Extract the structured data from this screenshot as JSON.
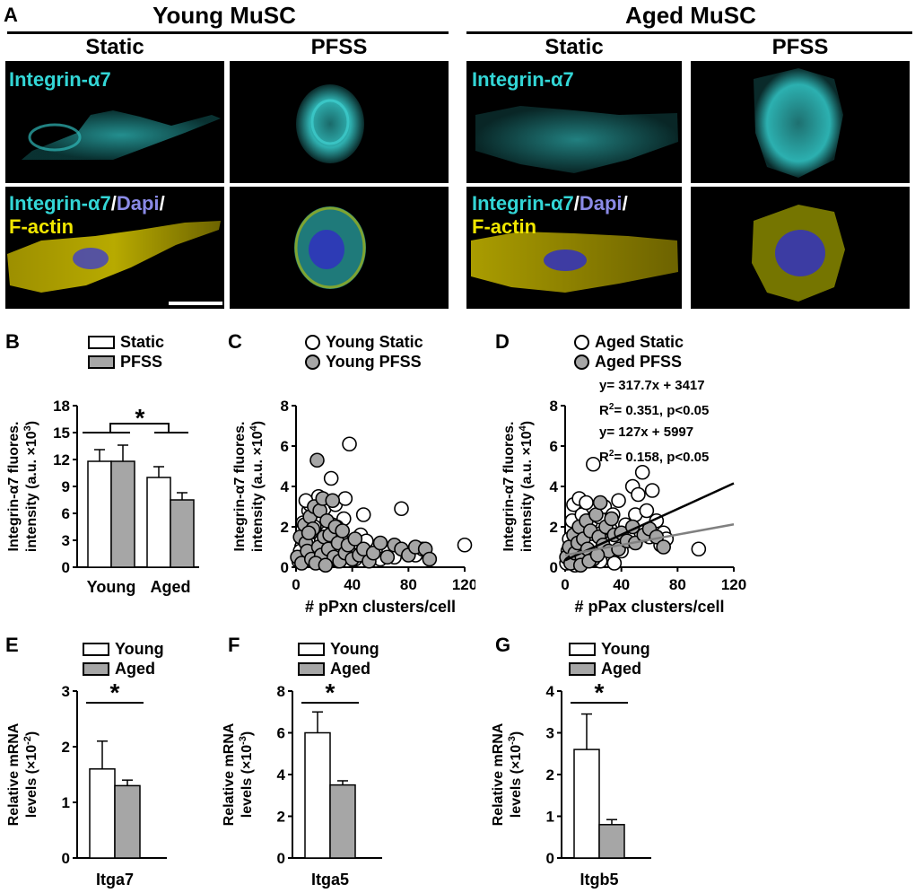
{
  "panels": {
    "A": "A",
    "B": "B",
    "C": "C",
    "D": "D",
    "E": "E",
    "F": "F",
    "G": "G"
  },
  "panel_a": {
    "young_header": "Young MuSC",
    "aged_header": "Aged MuSC",
    "col_static": "Static",
    "col_pfss": "PFSS",
    "label_integrin": "Integrin-α7",
    "merge_integrin": "Integrin-α7",
    "merge_slash1": "/",
    "merge_dapi": "Dapi",
    "merge_slash2": "/",
    "merge_factin": "F-actin",
    "colors": {
      "integrin": "#33d6d6",
      "dapi": "#8a8ae6",
      "factin": "#f0e600",
      "bg": "#000000"
    }
  },
  "legend_b": {
    "static": "Static",
    "pfss": "PFSS"
  },
  "legend_c": {
    "static": "Young Static",
    "pfss": "Young PFSS"
  },
  "legend_d": {
    "static": "Aged Static",
    "pfss": "Aged PFSS"
  },
  "legend_efg": {
    "young": "Young",
    "aged": "Aged"
  },
  "regression_d": {
    "line1": "y= 317.7x + 3417",
    "line2_pre": "R",
    "line2_sup": "2",
    "line2_post": "= 0.351, p<0.05",
    "line3": "y= 127x + 5997",
    "line4_pre": "R",
    "line4_sup": "2",
    "line4_post": "= 0.158, p<0.05"
  },
  "ylabels": {
    "b": {
      "l1": "Integrin-α7 fluores.",
      "l2_pre": "intensity (a.u. ×10",
      "l2_sup": "3",
      "l2_post": ")"
    },
    "c": {
      "l1": "Integrin-α7 fluores.",
      "l2_pre": "intensity (a.u. ×10",
      "l2_sup": "4",
      "l2_post": ")"
    },
    "d": {
      "l1": "Integrin-α7 fluores.",
      "l2_pre": "intensity (a.u. ×10",
      "l2_sup": "4",
      "l2_post": ")"
    },
    "e": {
      "l1": "Relative mRNA",
      "l2_pre": "levels (×10",
      "l2_sup": "-2",
      "l2_post": ")"
    },
    "f": {
      "l1": "Relative mRNA",
      "l2_pre": "levels (×10",
      "l2_sup": "-3",
      "l2_post": ")"
    },
    "g": {
      "l1": "Relative mRNA",
      "l2_pre": "levels (×10",
      "l2_sup": "-3",
      "l2_post": ")"
    }
  },
  "chart_data": [
    {
      "id": "B",
      "type": "bar",
      "categories": [
        "Young",
        "Aged"
      ],
      "series": [
        {
          "name": "Static",
          "values": [
            11.8,
            10.0
          ],
          "errors": [
            1.3,
            1.2
          ]
        },
        {
          "name": "PFSS",
          "values": [
            11.8,
            7.5
          ],
          "errors": [
            1.8,
            0.8
          ]
        }
      ],
      "ylim": [
        0,
        18
      ],
      "yticks": [
        0,
        3,
        6,
        9,
        12,
        15,
        18
      ],
      "significance": "*",
      "colors": {
        "Static": "#ffffff",
        "PFSS": "#a6a6a6"
      }
    },
    {
      "id": "C",
      "type": "scatter",
      "xlabel": "# pPxn clusters/cell",
      "xlim": [
        0,
        120
      ],
      "xticks": [
        0,
        40,
        80,
        120
      ],
      "ylim": [
        0,
        8
      ],
      "yticks": [
        0,
        2,
        4,
        6,
        8
      ],
      "series": [
        {
          "name": "Young Static",
          "points": [
            [
              2,
              0.3
            ],
            [
              4,
              1.0
            ],
            [
              5,
              2.2
            ],
            [
              6,
              1.5
            ],
            [
              8,
              0.5
            ],
            [
              9,
              2.8
            ],
            [
              10,
              3.1
            ],
            [
              11,
              1.1
            ],
            [
              12,
              1.8
            ],
            [
              14,
              0.4
            ],
            [
              15,
              2.5
            ],
            [
              16,
              3.5
            ],
            [
              18,
              1.3
            ],
            [
              20,
              2.9
            ],
            [
              21,
              0.8
            ],
            [
              22,
              1.7
            ],
            [
              25,
              4.4
            ],
            [
              26,
              2.1
            ],
            [
              28,
              3.1
            ],
            [
              30,
              0.3
            ],
            [
              32,
              1.4
            ],
            [
              34,
              2.4
            ],
            [
              36,
              0.9
            ],
            [
              38,
              6.1
            ],
            [
              40,
              1.1
            ],
            [
              43,
              0.6
            ],
            [
              46,
              1.6
            ],
            [
              48,
              2.6
            ],
            [
              52,
              0.5
            ],
            [
              55,
              1.0
            ],
            [
              60,
              0.4
            ],
            [
              66,
              0.8
            ],
            [
              70,
              0.5
            ],
            [
              75,
              2.9
            ],
            [
              85,
              0.6
            ],
            [
              90,
              0.9
            ],
            [
              120,
              1.1
            ],
            [
              3,
              0.8
            ],
            [
              7,
              3.3
            ],
            [
              13,
              2.0
            ],
            [
              19,
              0.2
            ],
            [
              24,
              1.0
            ],
            [
              29,
              2.0
            ],
            [
              35,
              3.4
            ],
            [
              42,
              0.4
            ],
            [
              50,
              1.3
            ]
          ]
        },
        {
          "name": "Young PFSS",
          "points": [
            [
              1,
              0.5
            ],
            [
              3,
              1.5
            ],
            [
              4,
              0.2
            ],
            [
              6,
              2.1
            ],
            [
              7,
              1.2
            ],
            [
              8,
              0.8
            ],
            [
              10,
              2.5
            ],
            [
              11,
              0.4
            ],
            [
              12,
              1.9
            ],
            [
              13,
              3.0
            ],
            [
              15,
              5.3
            ],
            [
              16,
              1.0
            ],
            [
              17,
              2.8
            ],
            [
              18,
              0.6
            ],
            [
              19,
              3.4
            ],
            [
              20,
              1.5
            ],
            [
              22,
              2.3
            ],
            [
              23,
              0.9
            ],
            [
              24,
              1.6
            ],
            [
              26,
              3.3
            ],
            [
              27,
              0.5
            ],
            [
              28,
              2.0
            ],
            [
              30,
              1.2
            ],
            [
              31,
              0.3
            ],
            [
              33,
              1.8
            ],
            [
              35,
              0.7
            ],
            [
              37,
              1.1
            ],
            [
              40,
              0.4
            ],
            [
              42,
              1.4
            ],
            [
              45,
              0.6
            ],
            [
              48,
              0.9
            ],
            [
              52,
              0.3
            ],
            [
              55,
              0.7
            ],
            [
              60,
              1.2
            ],
            [
              65,
              0.5
            ],
            [
              70,
              1.1
            ],
            [
              75,
              0.9
            ],
            [
              80,
              0.6
            ],
            [
              85,
              1.0
            ],
            [
              92,
              0.9
            ],
            [
              95,
              0.4
            ],
            [
              9,
              1.7
            ],
            [
              14,
              0.2
            ],
            [
              21,
              0.1
            ]
          ]
        }
      ]
    },
    {
      "id": "D",
      "type": "scatter",
      "xlabel": "# pPax clusters/cell",
      "xlim": [
        0,
        120
      ],
      "xticks": [
        0,
        40,
        80,
        120
      ],
      "ylim": [
        0,
        8
      ],
      "yticks": [
        0,
        2,
        4,
        6,
        8
      ],
      "series": [
        {
          "name": "Aged Static",
          "points": [
            [
              1,
              0.2
            ],
            [
              2,
              0.8
            ],
            [
              3,
              1.4
            ],
            [
              4,
              0.4
            ],
            [
              5,
              2.3
            ],
            [
              6,
              3.1
            ],
            [
              8,
              0.7
            ],
            [
              9,
              1.8
            ],
            [
              10,
              3.4
            ],
            [
              11,
              0.3
            ],
            [
              12,
              2.6
            ],
            [
              14,
              1.1
            ],
            [
              15,
              3.2
            ],
            [
              16,
              0.5
            ],
            [
              18,
              2.2
            ],
            [
              20,
              5.1
            ],
            [
              21,
              1.3
            ],
            [
              22,
              0.9
            ],
            [
              24,
              2.5
            ],
            [
              26,
              1.7
            ],
            [
              28,
              3.0
            ],
            [
              30,
              0.6
            ],
            [
              32,
              1.9
            ],
            [
              34,
              2.6
            ],
            [
              36,
              1.2
            ],
            [
              38,
              3.3
            ],
            [
              40,
              0.8
            ],
            [
              43,
              2.1
            ],
            [
              45,
              1.5
            ],
            [
              48,
              4.0
            ],
            [
              50,
              2.6
            ],
            [
              52,
              3.6
            ],
            [
              55,
              4.7
            ],
            [
              58,
              2.8
            ],
            [
              60,
              1.5
            ],
            [
              62,
              3.8
            ],
            [
              65,
              2.3
            ],
            [
              68,
              1.1
            ],
            [
              70,
              1.7
            ],
            [
              72,
              1.4
            ],
            [
              95,
              0.9
            ],
            [
              7,
              0.1
            ],
            [
              13,
              0.5
            ],
            [
              19,
              1.0
            ],
            [
              25,
              0.3
            ],
            [
              35,
              0.2
            ]
          ]
        },
        {
          "name": "Aged PFSS",
          "points": [
            [
              1,
              0.5
            ],
            [
              3,
              1.0
            ],
            [
              4,
              0.2
            ],
            [
              6,
              1.6
            ],
            [
              7,
              0.7
            ],
            [
              9,
              1.2
            ],
            [
              10,
              2.0
            ],
            [
              12,
              0.5
            ],
            [
              13,
              1.4
            ],
            [
              15,
              2.3
            ],
            [
              16,
              0.9
            ],
            [
              18,
              1.8
            ],
            [
              20,
              0.4
            ],
            [
              22,
              2.6
            ],
            [
              24,
              1.5
            ],
            [
              25,
              3.2
            ],
            [
              27,
              1.1
            ],
            [
              29,
              2.0
            ],
            [
              31,
              0.8
            ],
            [
              33,
              2.4
            ],
            [
              35,
              1.6
            ],
            [
              38,
              0.9
            ],
            [
              40,
              1.7
            ],
            [
              44,
              1.3
            ],
            [
              48,
              2.0
            ],
            [
              50,
              1.2
            ],
            [
              56,
              1.6
            ],
            [
              60,
              1.9
            ],
            [
              65,
              1.5
            ],
            [
              70,
              1.0
            ],
            [
              11,
              0.1
            ],
            [
              17,
              0.3
            ],
            [
              23,
              0.6
            ]
          ]
        }
      ],
      "fits": [
        {
          "series": "Aged Static",
          "slope": 0.03177,
          "intercept": 0.3417,
          "color": "#000000"
        },
        {
          "series": "Aged PFSS",
          "slope": 0.0127,
          "intercept": 0.5997,
          "color": "#808080"
        }
      ]
    },
    {
      "id": "E",
      "type": "bar",
      "categories": [
        "Young",
        "Aged"
      ],
      "values": [
        1.6,
        1.3
      ],
      "errors": [
        0.5,
        0.1
      ],
      "ylim": [
        0,
        3
      ],
      "yticks": [
        0,
        1,
        2,
        3
      ],
      "xlabel": "Itga7",
      "significance": "*"
    },
    {
      "id": "F",
      "type": "bar",
      "categories": [
        "Young",
        "Aged"
      ],
      "values": [
        6.0,
        3.5
      ],
      "errors": [
        1.0,
        0.2
      ],
      "ylim": [
        0,
        8
      ],
      "yticks": [
        0,
        2,
        4,
        6,
        8
      ],
      "xlabel": "Itga5",
      "significance": "*"
    },
    {
      "id": "G",
      "type": "bar",
      "categories": [
        "Young",
        "Aged"
      ],
      "values": [
        2.6,
        0.8
      ],
      "errors": [
        0.85,
        0.12
      ],
      "ylim": [
        0,
        4
      ],
      "yticks": [
        0,
        1,
        2,
        3,
        4
      ],
      "xlabel": "Itgb5",
      "significance": "*"
    }
  ]
}
